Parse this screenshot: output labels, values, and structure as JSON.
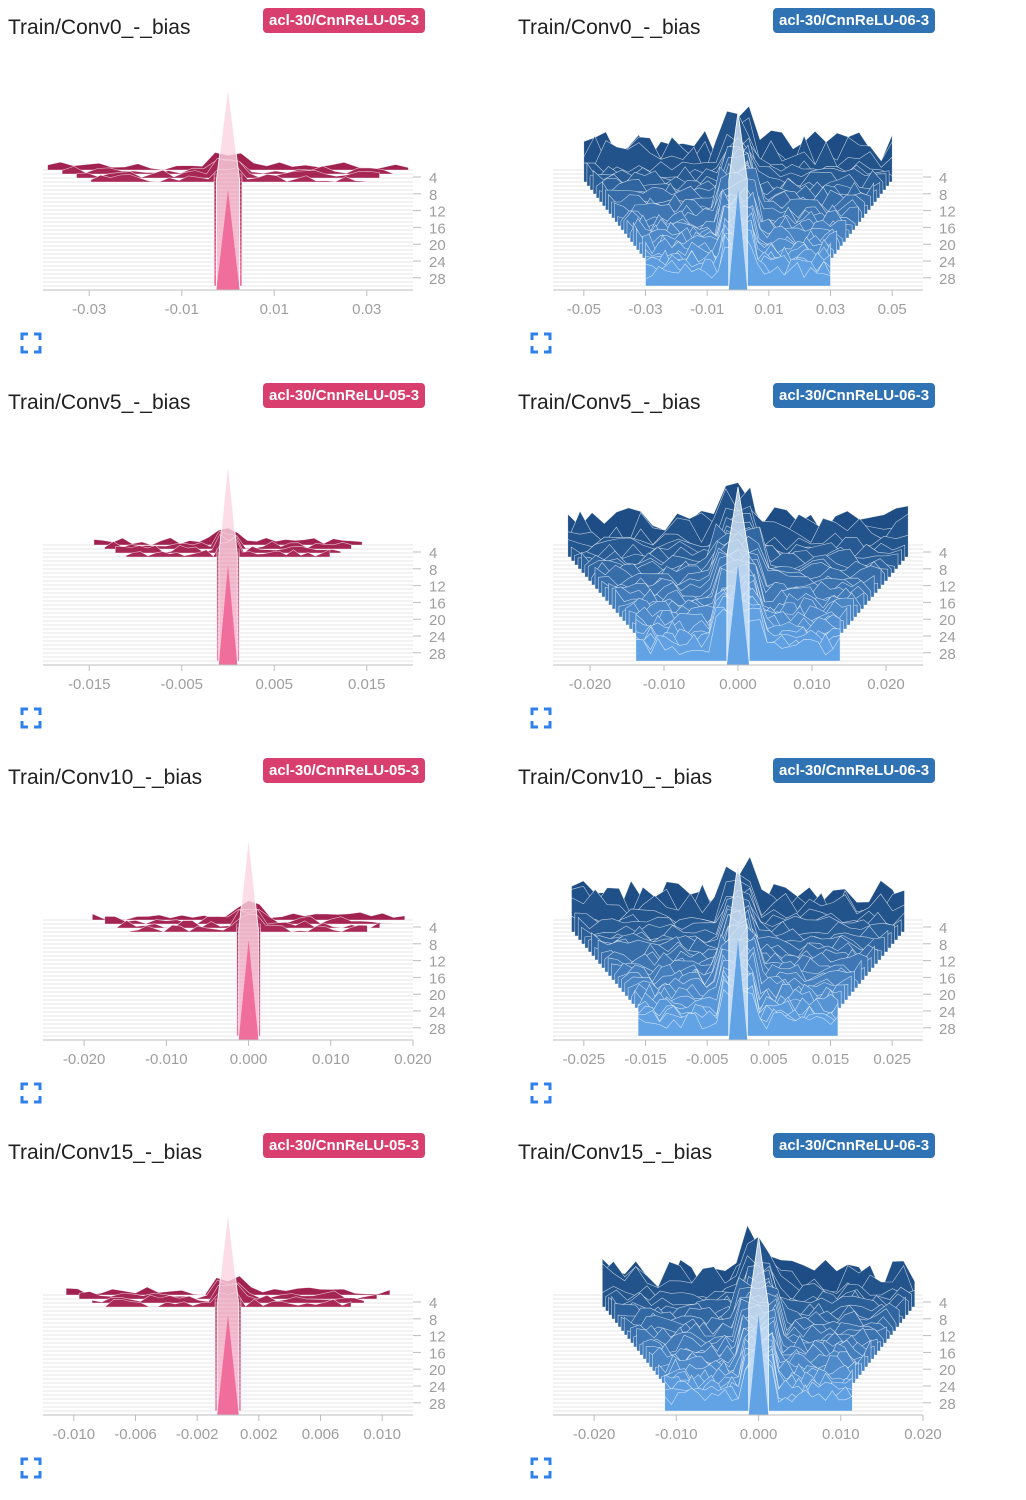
{
  "colors": {
    "pink_badge": "#d83f6f",
    "blue_badge": "#2f73b5",
    "pink_dark": "#a2224f",
    "pink_light": "#f06e9b",
    "blue_dark": "#1d4d84",
    "blue_light": "#62a3e6",
    "tick": "#9e9e9e",
    "grid": "#e6e6e6"
  },
  "expand_icon": "fullscreen-expand-icon",
  "step_ticks": [
    "4",
    "8",
    "12",
    "16",
    "20",
    "24",
    "28"
  ],
  "cards": [
    {
      "title": "Train/Conv0_-_bias",
      "run": "acl-30/CnnReLU-05-3",
      "variant": "pink",
      "chart_data": {
        "type": "histogram-ridgeline",
        "x_ticks": [
          -0.03,
          -0.01,
          0.01,
          0.03
        ],
        "x_tick_labels": [
          "-0.03",
          "-0.01",
          "0.01",
          "0.03"
        ],
        "xlim": [
          -0.04,
          0.04
        ],
        "spread": 0.039,
        "center_half_width": 0.0025,
        "steps": 30
      }
    },
    {
      "title": "Train/Conv0_-_bias",
      "run": "acl-30/CnnReLU-06-3",
      "variant": "blue",
      "chart_data": {
        "type": "histogram-ridgeline",
        "x_ticks": [
          -0.05,
          -0.03,
          -0.01,
          0.01,
          0.03,
          0.05
        ],
        "x_tick_labels": [
          "-0.05",
          "-0.03",
          "-0.01",
          "0.01",
          "0.03",
          "0.05"
        ],
        "xlim": [
          -0.06,
          0.06
        ],
        "spread": 0.05,
        "center_half_width": 0.003,
        "steps": 30
      }
    },
    {
      "title": "Train/Conv5_-_bias",
      "run": "acl-30/CnnReLU-05-3",
      "variant": "pink",
      "chart_data": {
        "type": "histogram-ridgeline",
        "x_ticks": [
          -0.015,
          -0.005,
          0.005,
          0.015
        ],
        "x_tick_labels": [
          "-0.015",
          "-0.005",
          "0.005",
          "0.015"
        ],
        "xlim": [
          -0.02,
          0.02
        ],
        "spread": 0.0145,
        "center_half_width": 0.001,
        "steps": 30
      }
    },
    {
      "title": "Train/Conv5_-_bias",
      "run": "acl-30/CnnReLU-06-3",
      "variant": "blue",
      "chart_data": {
        "type": "histogram-ridgeline",
        "x_ticks": [
          -0.02,
          -0.01,
          0.0,
          0.01,
          0.02
        ],
        "x_tick_labels": [
          "-0.020",
          "-0.010",
          "0.000",
          "0.010",
          "0.020"
        ],
        "xlim": [
          -0.025,
          0.025
        ],
        "spread": 0.023,
        "center_half_width": 0.0015,
        "steps": 30
      }
    },
    {
      "title": "Train/Conv10_-_bias",
      "run": "acl-30/CnnReLU-05-3",
      "variant": "pink",
      "chart_data": {
        "type": "histogram-ridgeline",
        "x_ticks": [
          -0.02,
          -0.01,
          0.0,
          0.01,
          0.02
        ],
        "x_tick_labels": [
          "-0.020",
          "-0.010",
          "0.000",
          "0.010",
          "0.020"
        ],
        "xlim": [
          -0.025,
          0.02
        ],
        "spread": 0.019,
        "center_half_width": 0.0012,
        "steps": 30
      }
    },
    {
      "title": "Train/Conv10_-_bias",
      "run": "acl-30/CnnReLU-06-3",
      "variant": "blue",
      "chart_data": {
        "type": "histogram-ridgeline",
        "x_ticks": [
          -0.025,
          -0.015,
          -0.005,
          0.005,
          0.015,
          0.025
        ],
        "x_tick_labels": [
          "-0.025",
          "-0.015",
          "-0.005",
          "0.005",
          "0.015",
          "0.025"
        ],
        "xlim": [
          -0.03,
          0.03
        ],
        "spread": 0.027,
        "center_half_width": 0.0015,
        "steps": 30
      }
    },
    {
      "title": "Train/Conv15_-_bias",
      "run": "acl-30/CnnReLU-05-3",
      "variant": "pink",
      "chart_data": {
        "type": "histogram-ridgeline",
        "x_ticks": [
          -0.01,
          -0.006,
          -0.002,
          0.002,
          0.006,
          0.01
        ],
        "x_tick_labels": [
          "-0.010",
          "-0.006",
          "-0.002",
          "0.002",
          "0.006",
          "0.010"
        ],
        "xlim": [
          -0.012,
          0.012
        ],
        "spread": 0.0105,
        "center_half_width": 0.0007,
        "steps": 30
      }
    },
    {
      "title": "Train/Conv15_-_bias",
      "run": "acl-30/CnnReLU-06-3",
      "variant": "blue",
      "chart_data": {
        "type": "histogram-ridgeline",
        "x_ticks": [
          -0.02,
          -0.01,
          0.0,
          0.01,
          0.02
        ],
        "x_tick_labels": [
          "-0.020",
          "-0.010",
          "0.000",
          "0.010",
          "0.020"
        ],
        "xlim": [
          -0.025,
          0.02
        ],
        "spread": 0.019,
        "center_half_width": 0.0012,
        "steps": 30
      }
    }
  ]
}
